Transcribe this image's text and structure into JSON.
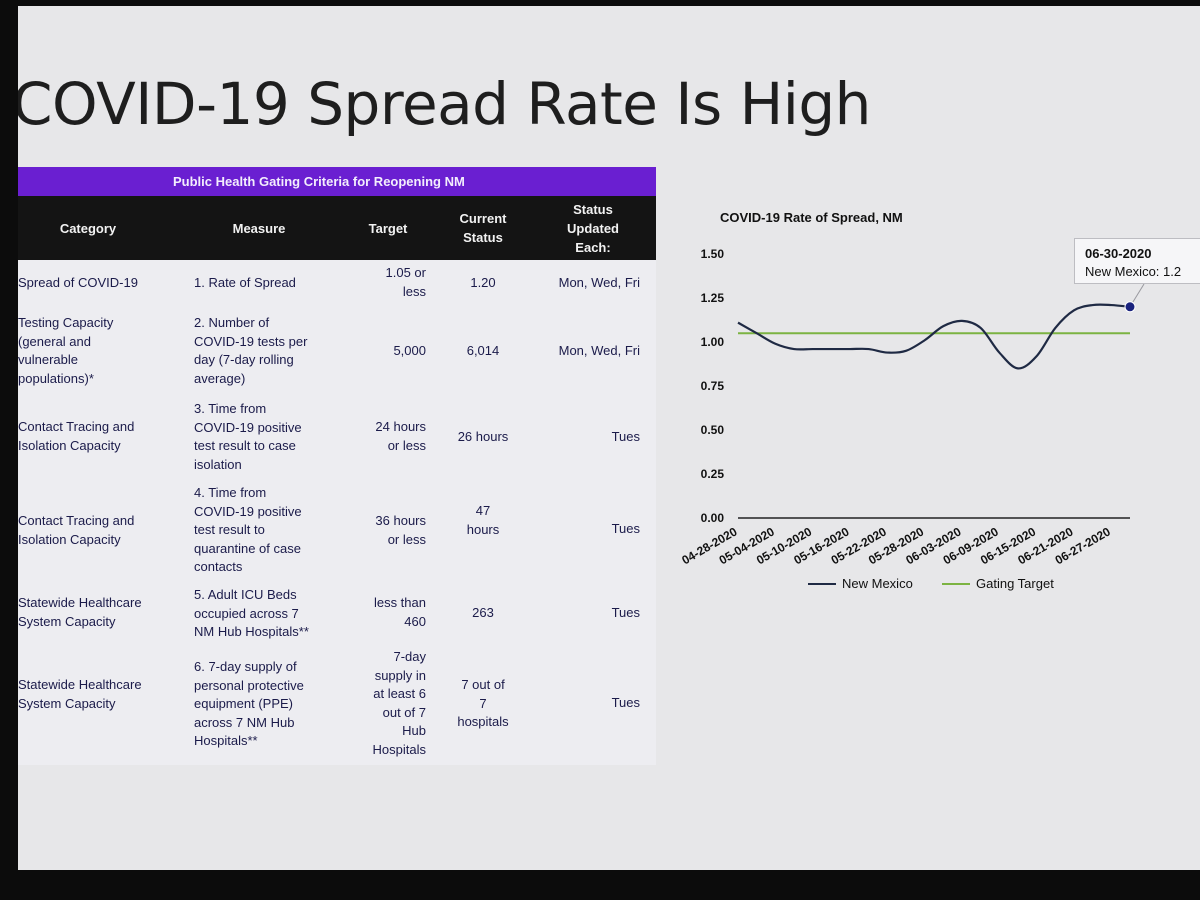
{
  "slide": {
    "title": "COVID-19 Spread Rate Is High"
  },
  "table": {
    "banner": "Public Health Gating Criteria for Reopening NM",
    "headers": [
      "Category",
      "Measure",
      "Target",
      "Current\nStatus",
      "Status\nUpdated\nEach:"
    ],
    "rows": [
      {
        "category": "Spread of COVID-19",
        "measure": "1. Rate of Spread",
        "target": "1.05 or\nless",
        "current": "1.20",
        "updated": "Mon, Wed, Fri"
      },
      {
        "category": "Testing Capacity\n(general and\nvulnerable\npopulations)*",
        "measure": "2. Number of\nCOVID-19 tests per\nday (7-day rolling\naverage)",
        "target": "5,000",
        "current": "6,014",
        "updated": "Mon, Wed, Fri"
      },
      {
        "category": "Contact Tracing and\nIsolation Capacity",
        "measure": "3. Time from\nCOVID-19 positive\ntest result to case\nisolation",
        "target": "24 hours\nor less",
        "current": "26 hours",
        "updated": "Tues"
      },
      {
        "category": "Contact Tracing and\nIsolation Capacity",
        "measure": "4. Time from\nCOVID-19 positive\ntest result to\nquarantine of case\ncontacts",
        "target": "36 hours\nor less",
        "current": "47\nhours",
        "updated": "Tues"
      },
      {
        "category": "Statewide Healthcare\nSystem Capacity",
        "measure": "5. Adult ICU Beds\noccupied across 7\nNM Hub Hospitals**",
        "target": "less than\n460",
        "current": "263",
        "updated": "Tues"
      },
      {
        "category": "Statewide Healthcare\nSystem Capacity",
        "measure": "6. 7-day supply of\npersonal protective\nequipment (PPE)\nacross 7 NM Hub\nHospitals**",
        "target": "7-day\nsupply in\nat least 6\nout of 7\nHub\nHospitals",
        "current": "7 out of\n7\nhospitals",
        "updated": "Tues"
      }
    ]
  },
  "chart_data": {
    "type": "line",
    "title": "COVID-19 Rate of Spread, NM",
    "xlabel": "",
    "ylabel": "",
    "ylim": [
      0,
      1.5
    ],
    "y_ticks": [
      "0.00",
      "0.25",
      "0.50",
      "0.75",
      "1.00",
      "1.25",
      "1.50"
    ],
    "x_tick_labels": [
      "04-28-2020",
      "05-04-2020",
      "05-10-2020",
      "05-16-2020",
      "05-22-2020",
      "05-28-2020",
      "06-03-2020",
      "06-09-2020",
      "06-15-2020",
      "06-21-2020",
      "06-27-2020"
    ],
    "x": [
      "04-28-2020",
      "05-01-2020",
      "05-04-2020",
      "05-07-2020",
      "05-10-2020",
      "05-13-2020",
      "05-16-2020",
      "05-19-2020",
      "05-22-2020",
      "05-25-2020",
      "05-28-2020",
      "05-31-2020",
      "06-03-2020",
      "06-06-2020",
      "06-09-2020",
      "06-12-2020",
      "06-15-2020",
      "06-18-2020",
      "06-21-2020",
      "06-24-2020",
      "06-27-2020",
      "06-30-2020"
    ],
    "series": [
      {
        "name": "New Mexico",
        "color": "#1f2a44",
        "values": [
          1.11,
          1.05,
          0.99,
          0.96,
          0.96,
          0.96,
          0.96,
          0.96,
          0.94,
          0.95,
          1.01,
          1.09,
          1.12,
          1.08,
          0.94,
          0.85,
          0.92,
          1.08,
          1.18,
          1.21,
          1.21,
          1.2
        ]
      },
      {
        "name": "Gating Target",
        "color": "#7cb342",
        "values": [
          1.05,
          1.05,
          1.05,
          1.05,
          1.05,
          1.05,
          1.05,
          1.05,
          1.05,
          1.05,
          1.05,
          1.05,
          1.05,
          1.05,
          1.05,
          1.05,
          1.05,
          1.05,
          1.05,
          1.05,
          1.05,
          1.05
        ]
      }
    ],
    "legend": "bottom",
    "grid": false,
    "tooltip": {
      "date": "06-30-2020",
      "label": "New Mexico: 1.2"
    }
  }
}
